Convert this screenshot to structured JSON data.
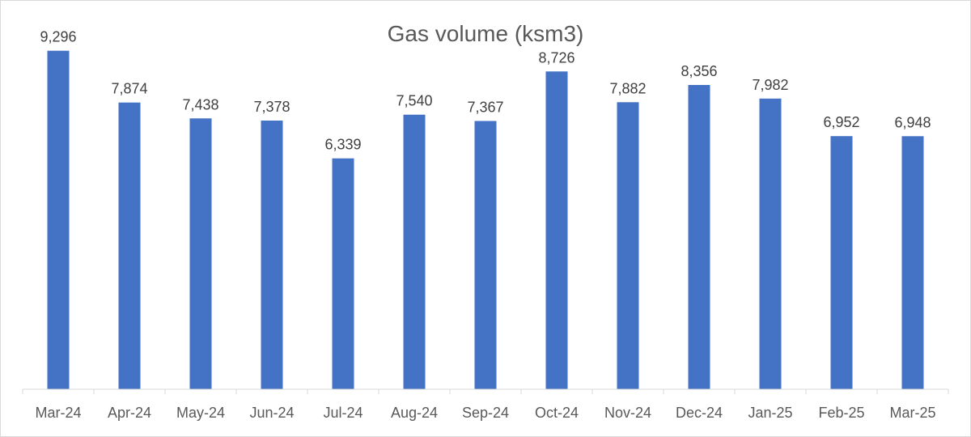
{
  "chart_data": {
    "type": "bar",
    "title": "Gas volume (ksm3)",
    "categories": [
      "Mar-24",
      "Apr-24",
      "May-24",
      "Jun-24",
      "Jul-24",
      "Aug-24",
      "Sep-24",
      "Oct-24",
      "Nov-24",
      "Dec-24",
      "Jan-25",
      "Feb-25",
      "Mar-25"
    ],
    "series": [
      {
        "values": [
          9296,
          7874,
          7438,
          7378,
          6339,
          7540,
          7367,
          8726,
          7882,
          8356,
          7982,
          6952,
          6948
        ],
        "labels": [
          "9,296",
          "7,874",
          "7,438",
          "7,378",
          "6,339",
          "7,540",
          "7,367",
          "8,726",
          "7,882",
          "8,356",
          "7,982",
          "6,952",
          "6,948"
        ],
        "color": "#4472c4"
      }
    ],
    "ylim": [
      0,
      10000
    ],
    "grid": false,
    "legend": "none",
    "xlabel": "",
    "ylabel": ""
  },
  "colors": {
    "bar": "#4472c4",
    "axis": "#d9d9d9",
    "text": "#595959"
  }
}
